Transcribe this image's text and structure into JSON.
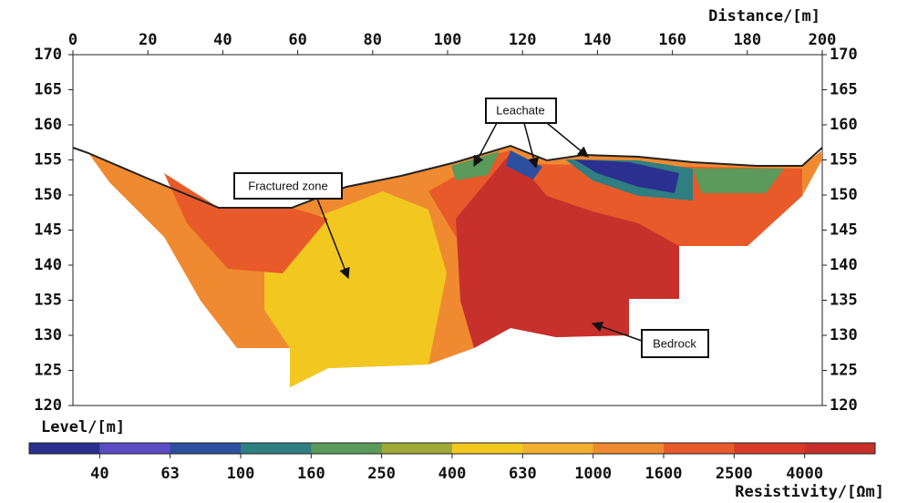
{
  "chart_data": {
    "type": "resistivity-section",
    "x_label": "Distance/[m]",
    "y_label": "Level/[m]",
    "xlim": [
      0,
      200
    ],
    "xticks": [
      0,
      20,
      40,
      60,
      80,
      100,
      120,
      140,
      160,
      180,
      200
    ],
    "ylim": [
      120,
      170
    ],
    "yticks": [
      120,
      125,
      130,
      135,
      140,
      145,
      150,
      155,
      160,
      165,
      170
    ],
    "annotations": [
      {
        "text": "Leachate"
      },
      {
        "text": "Fractured zone"
      },
      {
        "text": "Bedrock"
      }
    ],
    "colorbar": {
      "label": "Resistivity/[Ωm]",
      "ticks": [
        40,
        63,
        100,
        160,
        250,
        400,
        630,
        1000,
        1600,
        2500,
        4000
      ],
      "colors": [
        "#2b2f8f",
        "#5b4bc4",
        "#2c4fa0",
        "#2e7e82",
        "#5a9a5a",
        "#a0a838",
        "#f2c820",
        "#f3b030",
        "#ef8a30",
        "#e85a2a",
        "#d83a2a",
        "#c8302c"
      ]
    }
  }
}
